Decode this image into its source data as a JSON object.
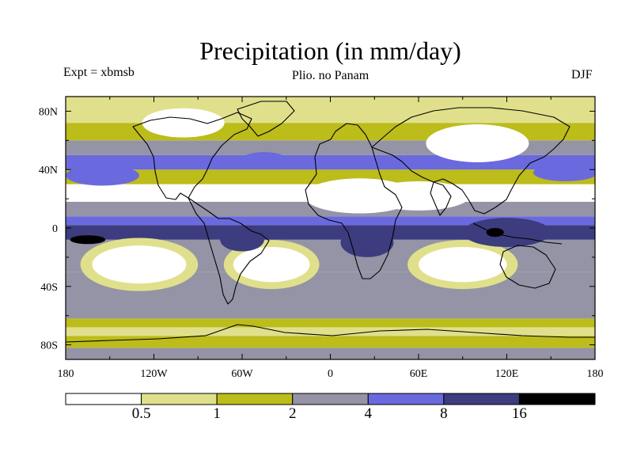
{
  "figure": {
    "title": "Precipitation (in mm/day)",
    "experiment": "Expt = xbmsb",
    "subtitle": "Plio. no Panam",
    "season": "DJF"
  },
  "chart_data": {
    "type": "heatmap",
    "title": "Precipitation (in mm/day)",
    "subtitle": "Plio. no Panam",
    "annotations": [
      "Expt = xbmsb",
      "DJF"
    ],
    "xlabel": "",
    "ylabel": "",
    "x_range": [
      -180,
      180
    ],
    "y_range": [
      -90,
      90
    ],
    "x_ticks": [
      -180,
      -120,
      -60,
      0,
      60,
      120,
      180
    ],
    "x_tick_labels": [
      "180",
      "120W",
      "60W",
      "0",
      "60E",
      "120E",
      "180"
    ],
    "y_ticks": [
      80,
      40,
      0,
      -40,
      -80
    ],
    "y_tick_labels": [
      "80N",
      "40N",
      "0",
      "40S",
      "80S"
    ],
    "colorbar": {
      "levels": [
        0.5,
        1,
        2,
        4,
        8,
        16
      ],
      "labels": [
        "0.5",
        "1",
        "2",
        "4",
        "8",
        "16"
      ],
      "colors": [
        "#ffffff",
        "#e0e08c",
        "#bcbc1a",
        "#9494a6",
        "#6a6ade",
        "#3c3c7e",
        "#000000"
      ]
    },
    "band_levels": [
      {
        "lat": -90,
        "class": 3
      },
      {
        "lat": -82,
        "class": 2
      },
      {
        "lat": -74,
        "class": 1
      },
      {
        "lat": -68,
        "class": 2
      },
      {
        "lat": -62,
        "class": 3
      },
      {
        "lat": -30,
        "class": 3
      },
      {
        "lat": -8,
        "class": 5
      },
      {
        "lat": 2,
        "class": 4
      },
      {
        "lat": 8,
        "class": 3
      },
      {
        "lat": 18,
        "class": 0
      },
      {
        "lat": 30,
        "class": 2
      },
      {
        "lat": 40,
        "class": 4
      },
      {
        "lat": 50,
        "class": 3
      },
      {
        "lat": 60,
        "class": 2
      },
      {
        "lat": 72,
        "class": 1
      },
      {
        "lat": 90,
        "class": 1
      }
    ],
    "features": [
      {
        "lon": -130,
        "lat": -25,
        "rlon": 32,
        "rlat": 13,
        "class": 0,
        "halo": 1
      },
      {
        "lon": -40,
        "lat": -25,
        "rlon": 26,
        "rlat": 12,
        "class": 0,
        "halo": 1
      },
      {
        "lon": 90,
        "lat": -25,
        "rlon": 30,
        "rlat": 12,
        "class": 0,
        "halo": 1
      },
      {
        "lon": 20,
        "lat": 22,
        "rlon": 38,
        "rlat": 12,
        "class": 0,
        "halo": 0
      },
      {
        "lon": 60,
        "lat": 22,
        "rlon": 35,
        "rlat": 10,
        "class": 0,
        "halo": 0
      },
      {
        "lon": 100,
        "lat": 58,
        "rlon": 35,
        "rlat": 13,
        "class": 0,
        "halo": 0
      },
      {
        "lon": -100,
        "lat": 72,
        "rlon": 28,
        "rlat": 10,
        "class": 0,
        "halo": 0
      },
      {
        "lon": 120,
        "lat": -3,
        "rlon": 30,
        "rlat": 10,
        "class": 5,
        "halo": 0
      },
      {
        "lon": -165,
        "lat": -8,
        "rlon": 12,
        "rlat": 3,
        "class": 6,
        "halo": 0
      },
      {
        "lon": 112,
        "lat": -3,
        "rlon": 6,
        "rlat": 3,
        "class": 6,
        "halo": 0
      },
      {
        "lon": 25,
        "lat": -10,
        "rlon": 18,
        "rlat": 10,
        "class": 5,
        "halo": 0
      },
      {
        "lon": -60,
        "lat": -8,
        "rlon": 15,
        "rlat": 8,
        "class": 5,
        "halo": 0
      },
      {
        "lon": -155,
        "lat": 36,
        "rlon": 25,
        "rlat": 7,
        "class": 4,
        "halo": 0
      },
      {
        "lon": 160,
        "lat": 38,
        "rlon": 22,
        "rlat": 6,
        "class": 4,
        "halo": 0
      },
      {
        "lon": -45,
        "lat": 47,
        "rlon": 15,
        "rlat": 5,
        "class": 4,
        "halo": 0
      }
    ],
    "grid": false,
    "colorbar_placement": "bottom"
  }
}
